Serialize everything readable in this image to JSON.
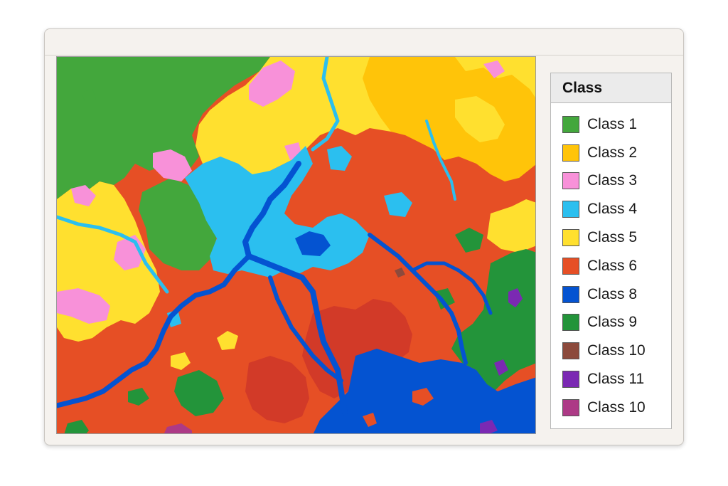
{
  "legend": {
    "title": "Class",
    "items": [
      {
        "label": "Class 1",
        "color": "#43a73c"
      },
      {
        "label": "Class 2",
        "color": "#ffc409"
      },
      {
        "label": "Class 3",
        "color": "#f891d9"
      },
      {
        "label": "Class 4",
        "color": "#2bbfef"
      },
      {
        "label": "Class 5",
        "color": "#ffe02f"
      },
      {
        "label": "Class 6",
        "color": "#e64f25"
      },
      {
        "label": "Class 8",
        "color": "#0453d1"
      },
      {
        "label": "Class 9",
        "color": "#23943a"
      },
      {
        "label": "Class 10",
        "color": "#8c4a3c"
      },
      {
        "label": "Class 11",
        "color": "#7b29b3"
      },
      {
        "label": "Class 10",
        "color": "#ad3a86"
      }
    ]
  }
}
